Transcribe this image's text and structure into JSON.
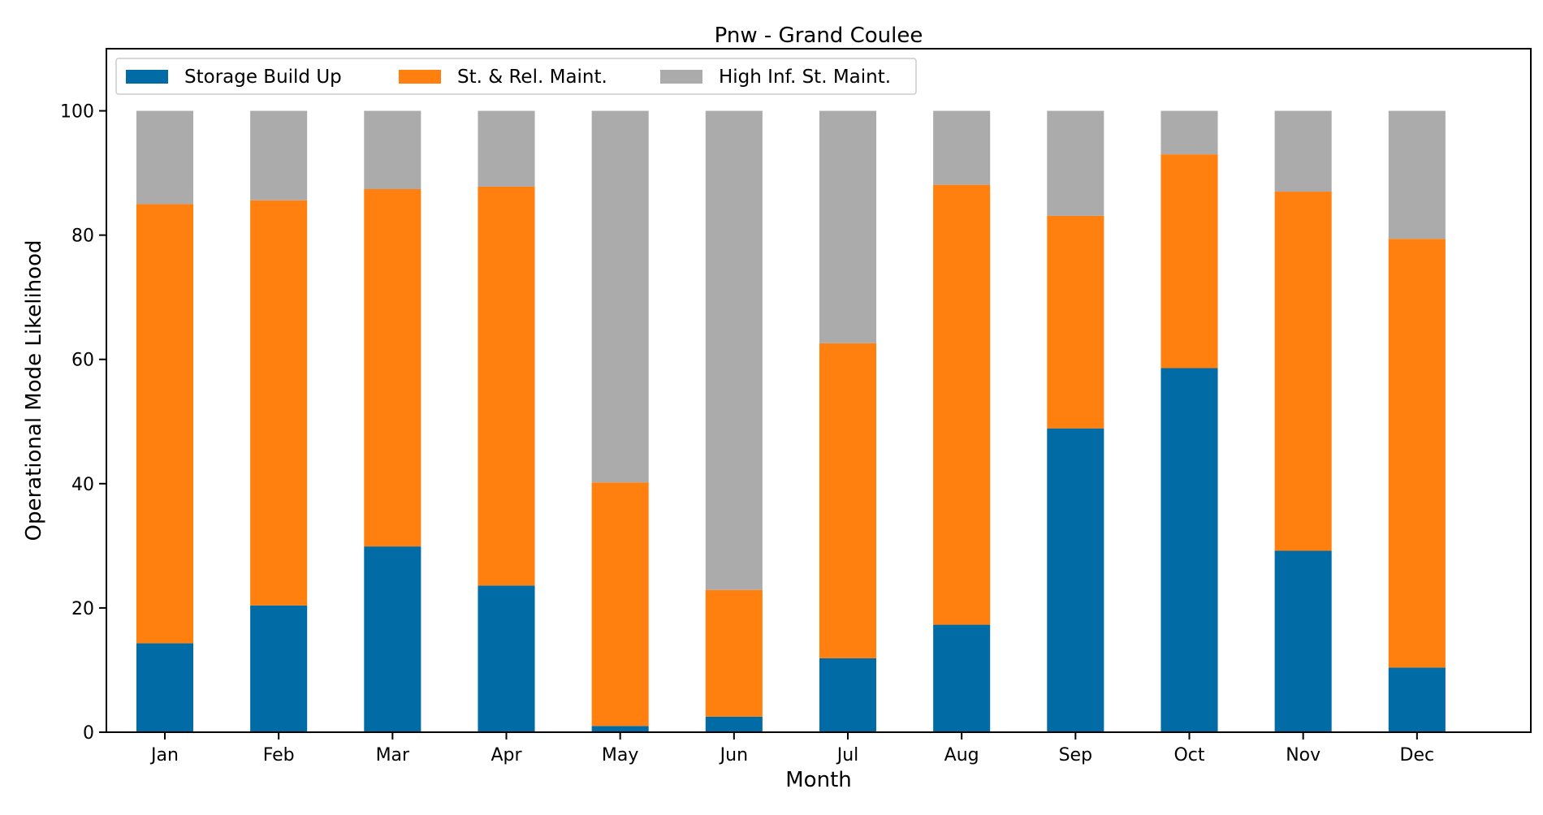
{
  "chart_data": {
    "type": "bar",
    "stacked": true,
    "title": "Pnw - Grand Coulee",
    "xlabel": "Month",
    "ylabel": "Operational Mode Likelihood",
    "ylim": [
      0,
      110
    ],
    "yticks": [
      0,
      20,
      40,
      60,
      80,
      100
    ],
    "grid": false,
    "legend_position": "top-left",
    "categories": [
      "Jan",
      "Feb",
      "Mar",
      "Apr",
      "May",
      "Jun",
      "Jul",
      "Aug",
      "Sep",
      "Oct",
      "Nov",
      "Dec"
    ],
    "series": [
      {
        "name": "Storage Build Up",
        "color": "#006BA4",
        "values": [
          14.3,
          20.4,
          29.9,
          23.6,
          1.0,
          2.5,
          11.9,
          17.3,
          48.9,
          58.6,
          29.2,
          10.4
        ]
      },
      {
        "name": "St. & Rel. Maint.",
        "color": "#FF800E",
        "values": [
          70.7,
          65.2,
          57.5,
          64.2,
          39.2,
          20.4,
          50.7,
          70.8,
          34.2,
          34.4,
          57.8,
          69.0
        ]
      },
      {
        "name": "High Inf. St. Maint.",
        "color": "#ABABAB",
        "values": [
          15.0,
          14.4,
          12.6,
          12.2,
          59.8,
          77.1,
          37.4,
          11.9,
          16.9,
          7.0,
          13.0,
          20.6
        ]
      }
    ]
  }
}
